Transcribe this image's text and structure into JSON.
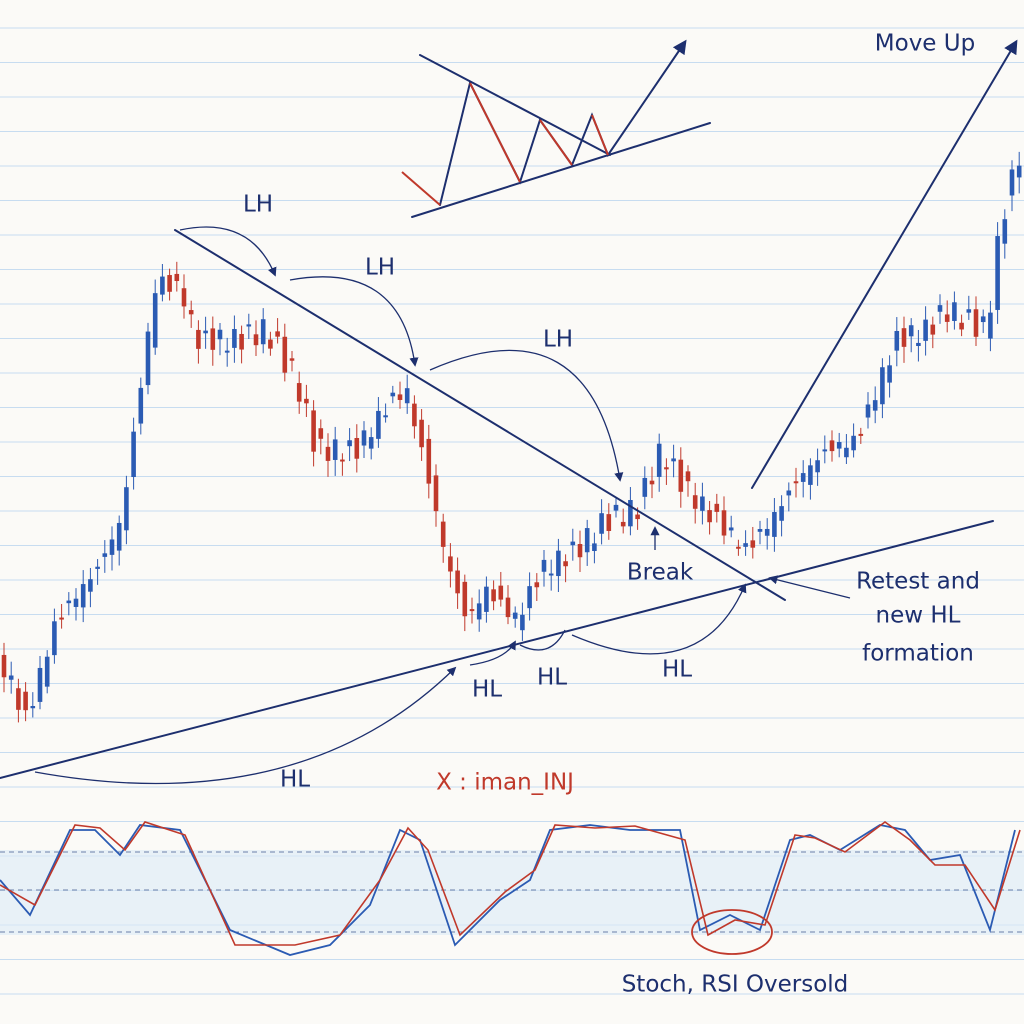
{
  "labels": {
    "lh": [
      "LH",
      "LH",
      "LH"
    ],
    "hl": [
      "HL",
      "HL",
      "HL",
      "HL"
    ],
    "break": "Break",
    "retest": [
      "Retest and",
      "new HL",
      "formation"
    ],
    "move_up": "Move Up",
    "watermark": "X : iman_INJ",
    "oscillator": "Stoch, RSI Oversold"
  }
}
